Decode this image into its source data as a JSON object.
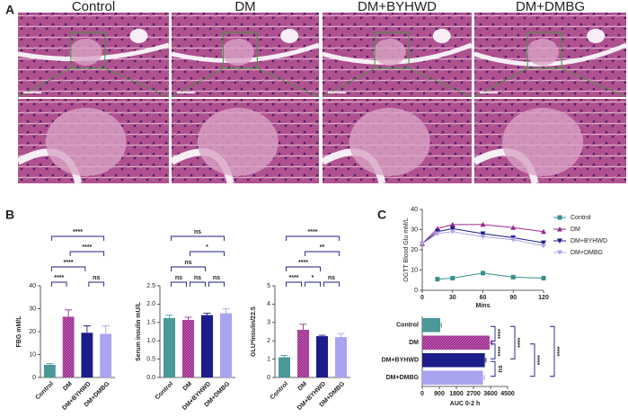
{
  "panels": {
    "a": "A",
    "b": "B",
    "c": "C"
  },
  "columns": [
    "Control",
    "DM",
    "DM+BYHWD",
    "DM+DMBG"
  ],
  "chart_data": [
    {
      "type": "bar",
      "ylabel": "FBG mM/L",
      "categories": [
        "Control",
        "DM",
        "DM+BYHWD",
        "DM+DMBG"
      ],
      "colors": [
        "#4a9898",
        "#9b2a8e",
        "#1c1c8a",
        "#a9a4ef"
      ],
      "values": [
        5.5,
        26.5,
        19.5,
        19
      ],
      "errors": [
        0.5,
        3,
        3,
        3.5
      ],
      "ylim": [
        0,
        40
      ],
      "yticks": [
        0,
        10,
        20,
        30,
        40
      ],
      "annotations": [
        {
          "text": "****",
          "from": "Control",
          "to": "DM"
        },
        {
          "text": "ns",
          "from": "DM+BYHWD",
          "to": "DM+DMBG"
        },
        {
          "text": "****",
          "from": "Control",
          "to": "DM+BYHWD"
        },
        {
          "text": "****",
          "from": "DM",
          "to": "DM+DMBG"
        },
        {
          "text": "****",
          "from": "Control",
          "to": "DM+DMBG"
        }
      ]
    },
    {
      "type": "bar",
      "ylabel": "Serum insulin mU/L",
      "categories": [
        "Control",
        "DM",
        "DM+BYHWD",
        "DM+DMBG"
      ],
      "colors": [
        "#4a9898",
        "#9b2a8e",
        "#1c1c8a",
        "#a9a4ef"
      ],
      "values": [
        1.62,
        1.57,
        1.7,
        1.75
      ],
      "errors": [
        0.08,
        0.07,
        0.05,
        0.12
      ],
      "ylim": [
        0,
        2.5
      ],
      "yticks": [
        {
          "value": 0,
          "label": "0.0"
        },
        {
          "value": 0.5,
          "label": "0.5"
        },
        {
          "value": 1,
          "label": "1.0"
        },
        {
          "value": 1.5,
          "label": "1.5"
        },
        {
          "value": 2,
          "label": "2.0"
        },
        {
          "value": 2.5,
          "label": "2.5"
        }
      ],
      "annotations": [
        {
          "text": "ns",
          "from": "Control",
          "to": "DM"
        },
        {
          "text": "ns",
          "from": "DM",
          "to": "DM+BYHWD"
        },
        {
          "text": "ns",
          "from": "DM+BYHWD",
          "to": "DM+DMBG"
        },
        {
          "text": "ns",
          "from": "Control",
          "to": "DM+BYHWD"
        },
        {
          "text": "*",
          "from": "DM",
          "to": "DM+DMBG"
        },
        {
          "text": "ns",
          "from": "Control",
          "to": "DM+DMBG"
        }
      ]
    },
    {
      "type": "bar",
      "ylabel": "GLU*insulin/22.5",
      "categories": [
        "Control",
        "DM",
        "DM+BYHWD",
        "DM+DMBG"
      ],
      "colors": [
        "#4a9898",
        "#9b2a8e",
        "#1c1c8a",
        "#a9a4ef"
      ],
      "values": [
        1.1,
        2.6,
        2.25,
        2.2
      ],
      "errors": [
        0.1,
        0.3,
        0.05,
        0.2
      ],
      "ylim": [
        0,
        5
      ],
      "yticks": [
        0,
        1,
        2,
        3,
        4,
        5
      ],
      "annotations": [
        {
          "text": "****",
          "from": "Control",
          "to": "DM"
        },
        {
          "text": "*",
          "from": "DM",
          "to": "DM+BYHWD"
        },
        {
          "text": "ns",
          "from": "DM+BYHWD",
          "to": "DM+DMBG"
        },
        {
          "text": "****",
          "from": "Control",
          "to": "DM+BYHWD"
        },
        {
          "text": "**",
          "from": "DM",
          "to": "DM+DMBG"
        },
        {
          "text": "****",
          "from": "Control",
          "to": "DM+DMBG"
        }
      ]
    },
    {
      "type": "line",
      "ylabel": "OGTT Blood Glu mM/L",
      "xlabel": "Mins",
      "x": [
        0,
        15,
        30,
        60,
        90,
        120
      ],
      "xlim": [
        0,
        120
      ],
      "xticks": [
        0,
        30,
        60,
        90,
        120
      ],
      "ylim": [
        0,
        40
      ],
      "yticks": [
        0,
        10,
        20,
        30,
        40
      ],
      "series": [
        {
          "name": "Control",
          "color": "#3a8f8f",
          "marker": "square",
          "values": [
            null,
            5.5,
            6,
            8.5,
            6.5,
            6
          ]
        },
        {
          "name": "DM",
          "color": "#9b2a8e",
          "marker": "triangle-up",
          "values": [
            23,
            30.5,
            32.5,
            32.5,
            31,
            29
          ]
        },
        {
          "name": "DM+BYHWD",
          "color": "#1c1c8a",
          "marker": "triangle-down",
          "values": [
            23,
            29,
            30.5,
            28,
            26,
            23.5
          ]
        },
        {
          "name": "DM+DMBG",
          "color": "#b3a4e8",
          "marker": "triangle-down",
          "values": [
            23,
            28,
            29,
            26.5,
            25,
            22
          ]
        }
      ]
    },
    {
      "type": "hbar",
      "xlabel": "AUC 0-2 h",
      "categories": [
        "Control",
        "DM",
        "DM+BYHWD",
        "DM+DMBG"
      ],
      "colors": [
        "#4a9898",
        "#9b2a8e",
        "#1c1c8a",
        "#a9a4ef"
      ],
      "values": [
        950,
        3550,
        3300,
        3200
      ],
      "errors": [
        60,
        120,
        60,
        80
      ],
      "xlim": [
        0,
        4500
      ],
      "xticks": [
        0,
        900,
        1800,
        2700,
        3600,
        4500
      ],
      "annotations": [
        {
          "text": "ns",
          "from": "DM+BYHWD",
          "to": "DM+DMBG"
        },
        {
          "text": "****",
          "from": "Control",
          "to": "DM"
        },
        {
          "text": "****",
          "from": "DM",
          "to": "DM+BYHWD"
        },
        {
          "text": "****",
          "from": "Control",
          "to": "DM+BYHWD"
        },
        {
          "text": "****",
          "from": "DM",
          "to": "DM+DMBG"
        },
        {
          "text": "****",
          "from": "Control",
          "to": "DM+DMBG"
        }
      ]
    }
  ]
}
